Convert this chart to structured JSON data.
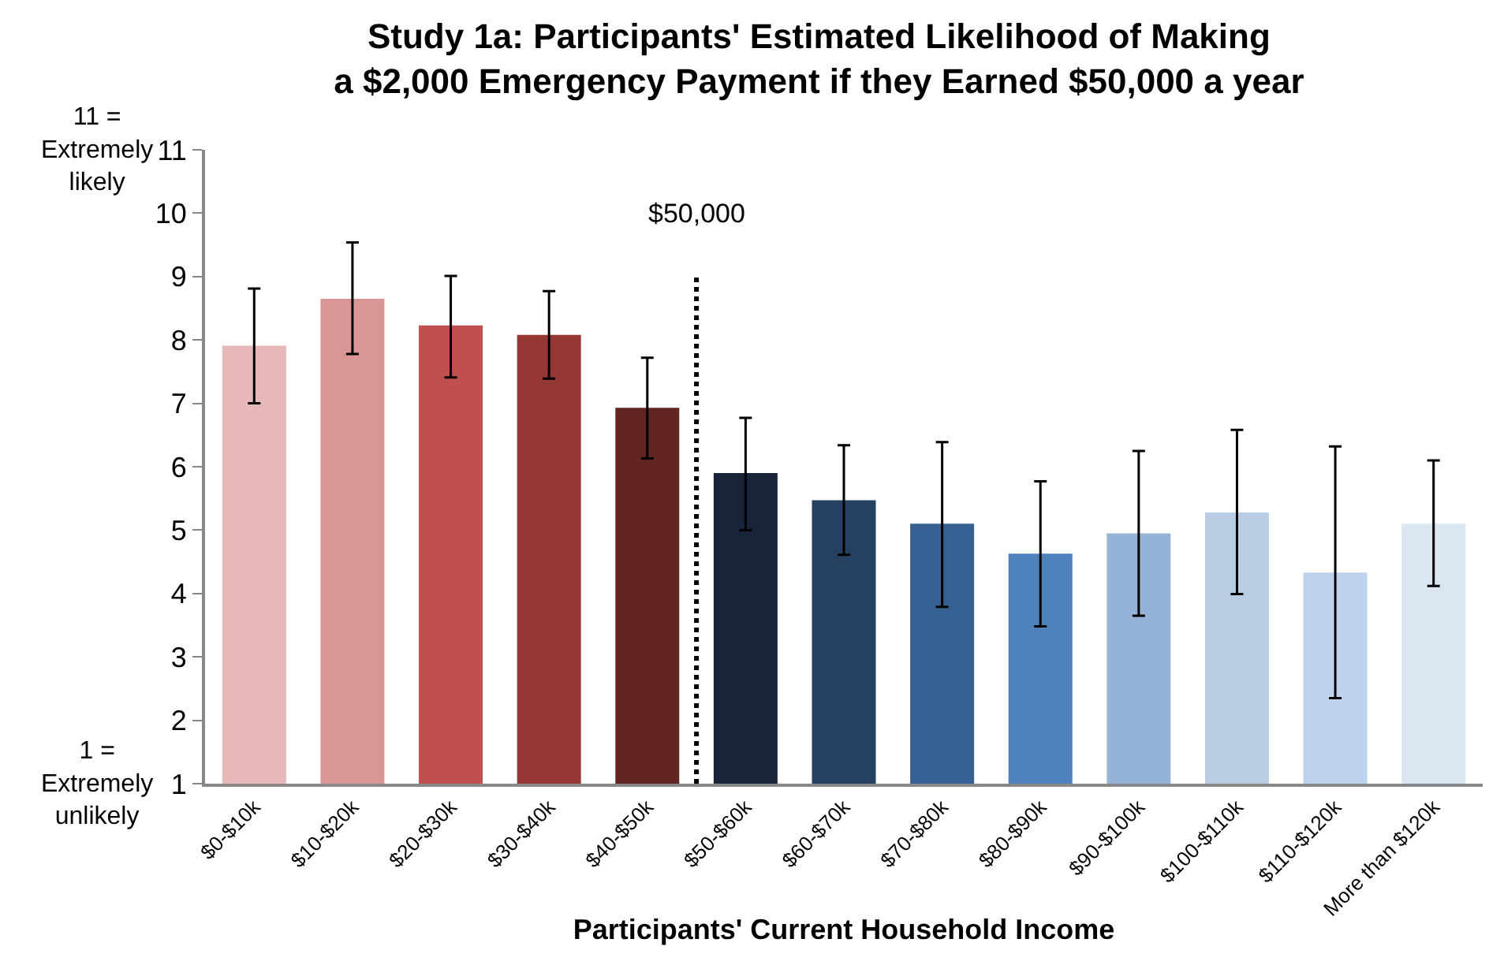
{
  "chart_data": {
    "type": "bar",
    "title": "Study 1a: Participants' Estimated Likelihood of Making\na $2,000 Emergency Payment if they Earned $50,000 a year",
    "xlabel": "Participants' Current Household Income",
    "categories": [
      "$0-$10k",
      "$10-$20k",
      "$20-$30k",
      "$30-$40k",
      "$40-$50k",
      "$50-$60k",
      "$60-$70k",
      "$70-$80k",
      "$80-$90k",
      "$90-$100k",
      "$100-$110k",
      "$110-$120k",
      "More than $120k"
    ],
    "values": [
      7.91,
      8.65,
      8.23,
      8.08,
      6.93,
      5.9,
      5.47,
      5.1,
      4.63,
      4.95,
      5.28,
      4.33,
      5.1
    ],
    "errors": [
      [
        7.0,
        8.81
      ],
      [
        7.78,
        9.54
      ],
      [
        7.41,
        9.01
      ],
      [
        7.39,
        8.77
      ],
      [
        6.13,
        7.72
      ],
      [
        5.0,
        6.77
      ],
      [
        4.61,
        6.34
      ],
      [
        3.79,
        6.39
      ],
      [
        3.48,
        5.77
      ],
      [
        3.65,
        6.25
      ],
      [
        3.99,
        6.58
      ],
      [
        2.35,
        6.32
      ],
      [
        4.12,
        6.1
      ]
    ],
    "colors": [
      "#e6b9b8",
      "#d99694",
      "#c0504d",
      "#953735",
      "#632523",
      "#17243a",
      "#254061",
      "#376092",
      "#4f81bd",
      "#95b3d7",
      "#b9cde5",
      "#bdd2ec",
      "#dce6f2"
    ],
    "ylim": [
      1,
      11
    ],
    "yticks": [
      1,
      2,
      3,
      4,
      5,
      6,
      7,
      8,
      9,
      10,
      11
    ],
    "annotations": [
      "11 =\nExtremely\nlikely",
      "1 =\nExtremely\nunlikely",
      "$50,000"
    ]
  }
}
